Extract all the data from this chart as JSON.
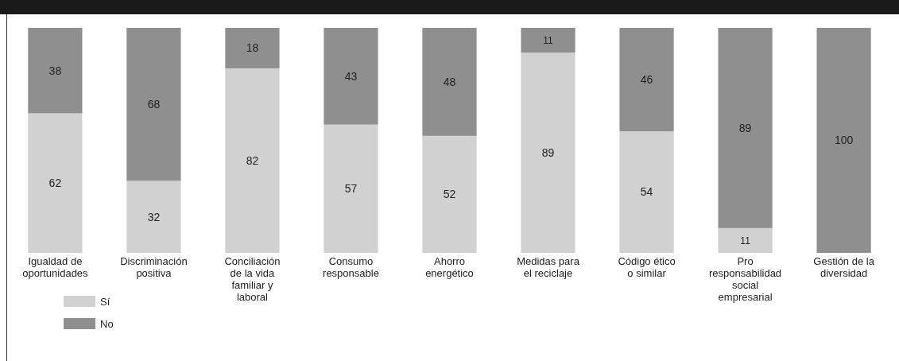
{
  "chart_data": {
    "type": "bar",
    "stacked": true,
    "data_labels": true,
    "legend": "bottom left",
    "categories": [
      "Igualdad de oportunidades",
      "Discriminación positiva",
      "Conciliación de la vida familiar y laboral",
      "Consumo responsable",
      "Ahorro energético",
      "Medidas para el reciclaje",
      "Código ético o similar",
      "Pro responsabilidad social empresarial",
      "Gestión de la diversidad"
    ],
    "series": [
      {
        "name": "Sí",
        "color": "#d1d1d1",
        "values": [
          62,
          32,
          82,
          57,
          52,
          89,
          54,
          11,
          null
        ]
      },
      {
        "name": "No",
        "color": "#8f8f8f",
        "values": [
          38,
          68,
          18,
          43,
          48,
          11,
          46,
          89,
          100
        ]
      }
    ]
  }
}
